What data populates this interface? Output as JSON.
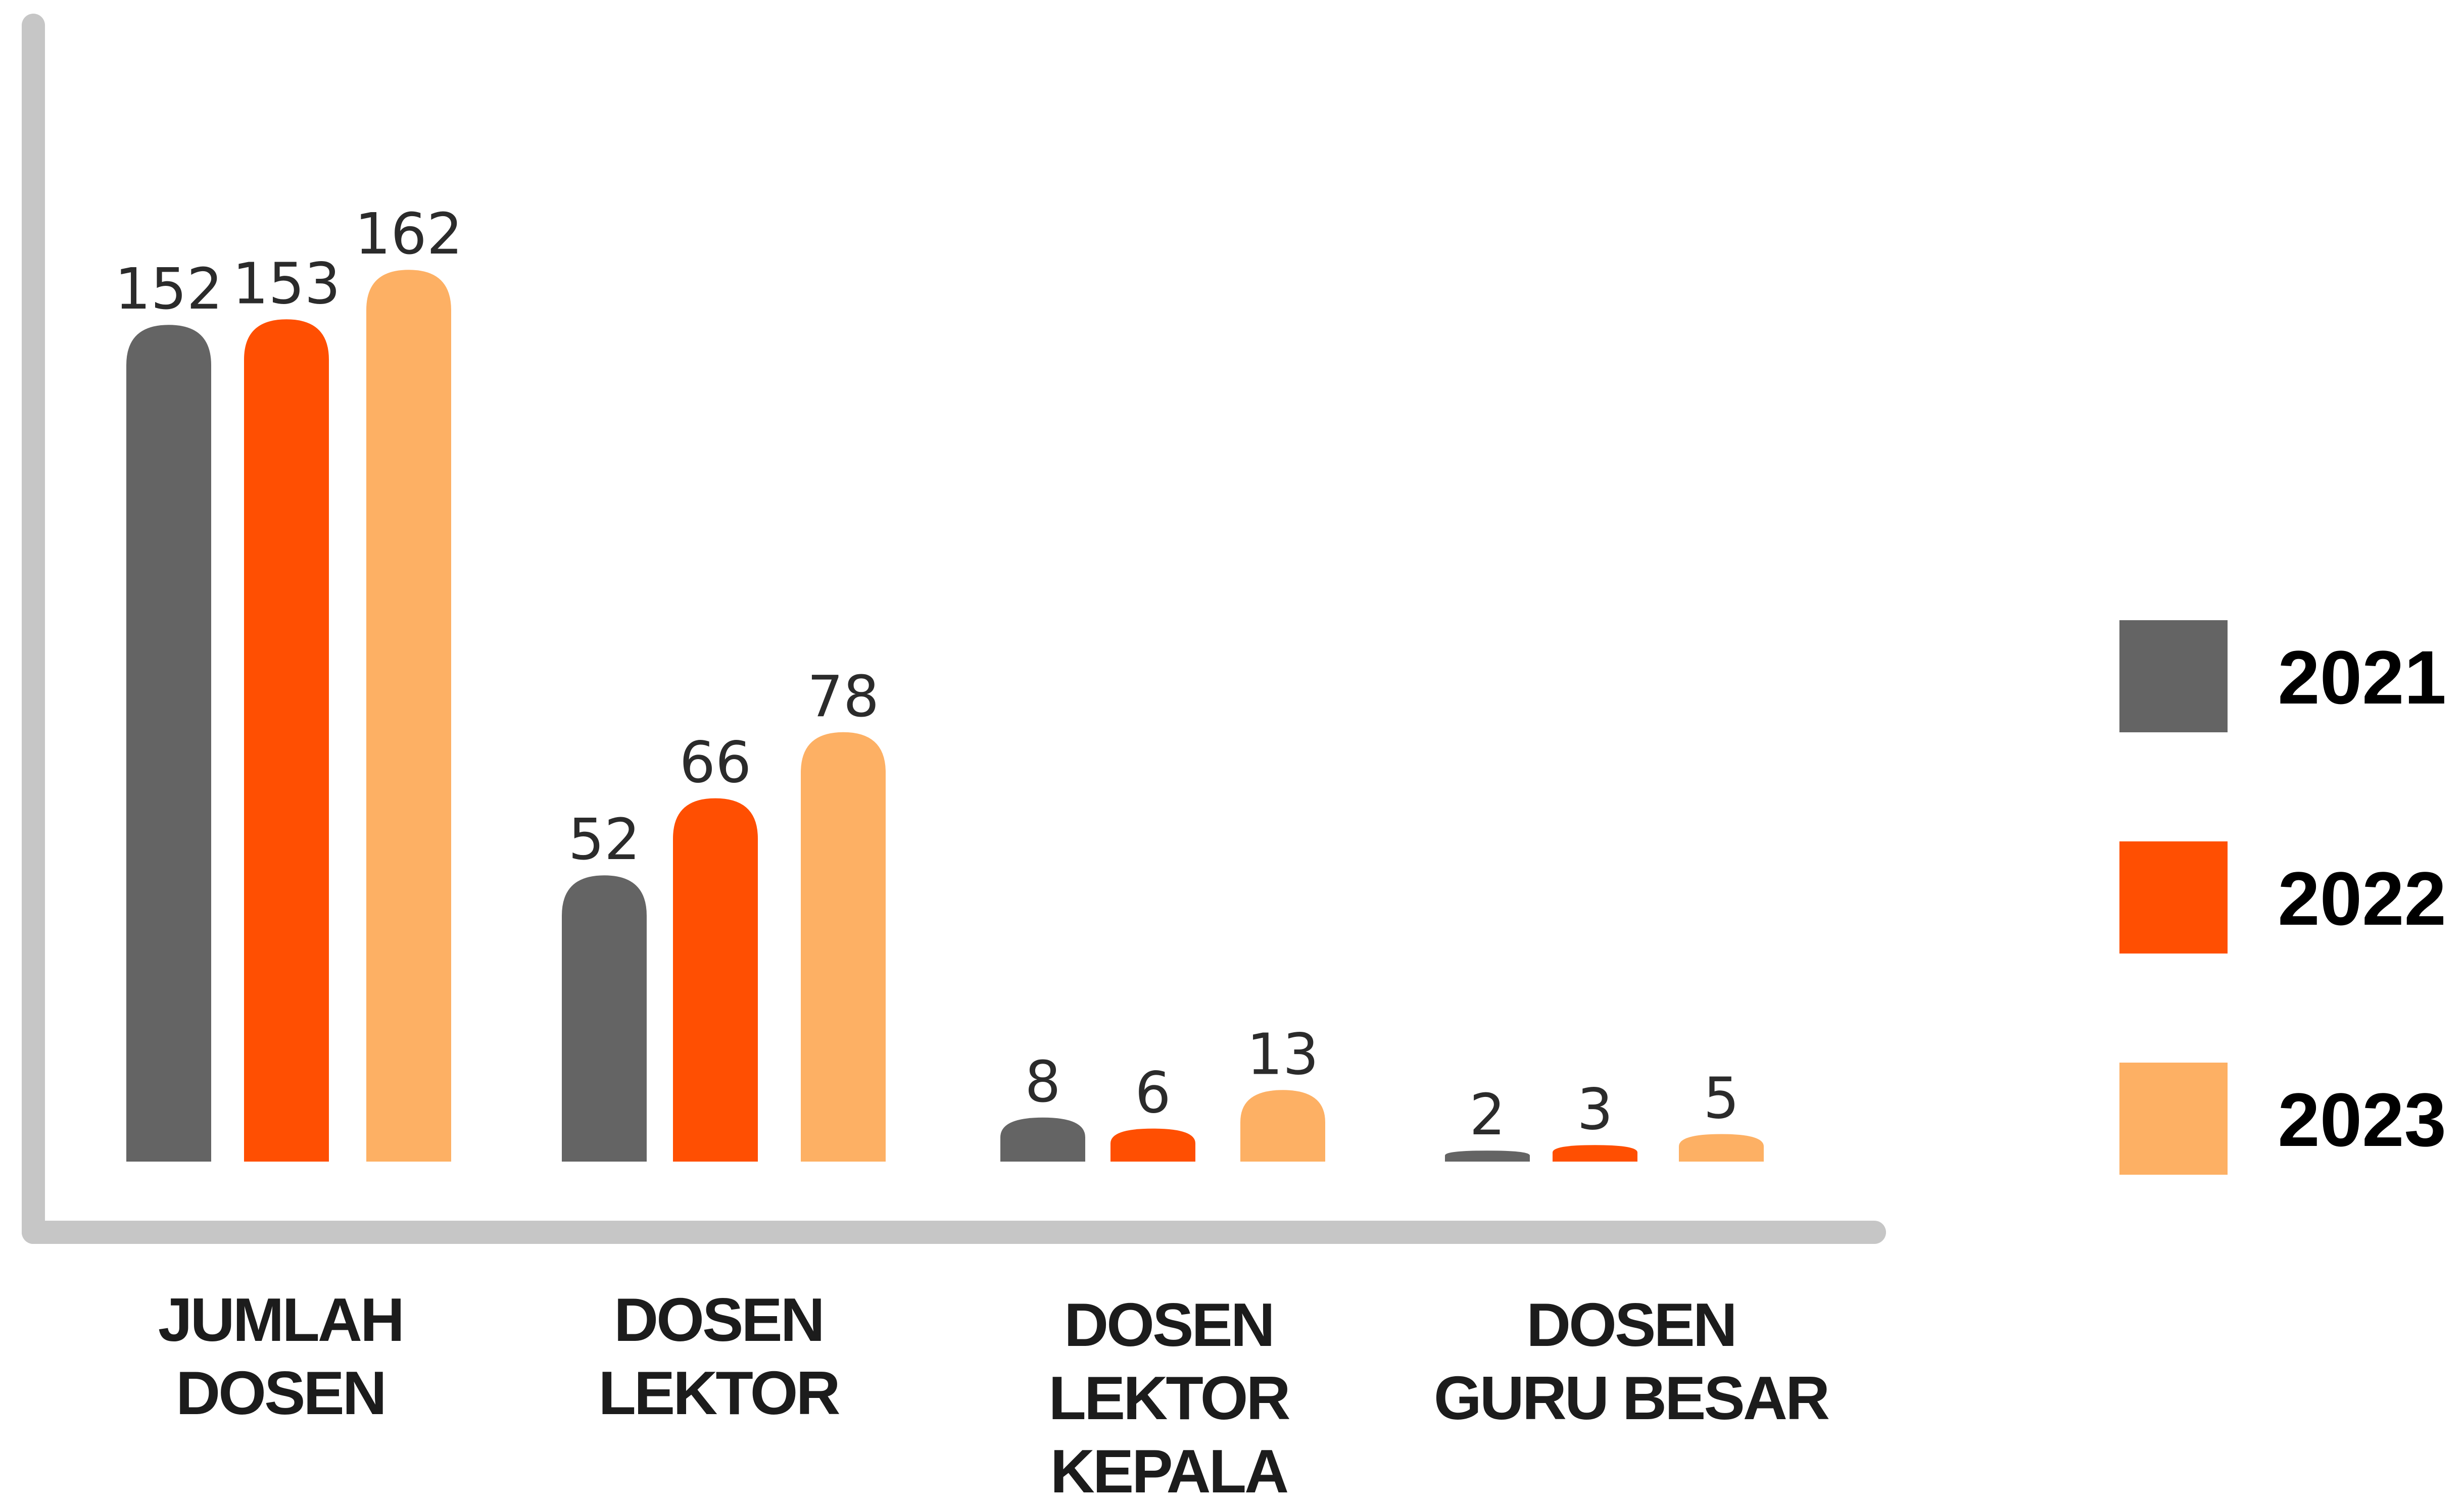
{
  "chart_data": {
    "type": "bar",
    "categories": [
      [
        "JUMLAH",
        "DOSEN"
      ],
      [
        "DOSEN",
        "LEKTOR"
      ],
      [
        "DOSEN",
        "LEKTOR",
        "KEPALA"
      ],
      [
        "DOSEN",
        "GURU BESAR"
      ]
    ],
    "series": [
      {
        "name": "2021",
        "color": "#646464",
        "values": [
          152,
          52,
          8,
          2
        ]
      },
      {
        "name": "2022",
        "color": "#ff4f02",
        "values": [
          153,
          66,
          6,
          3
        ]
      },
      {
        "name": "2023",
        "color": "#fdb064",
        "values": [
          162,
          78,
          13,
          5
        ]
      }
    ],
    "ylim": [
      0,
      170
    ],
    "grid": false,
    "legend_position": "right",
    "axis_color": "#c6c6c6"
  }
}
